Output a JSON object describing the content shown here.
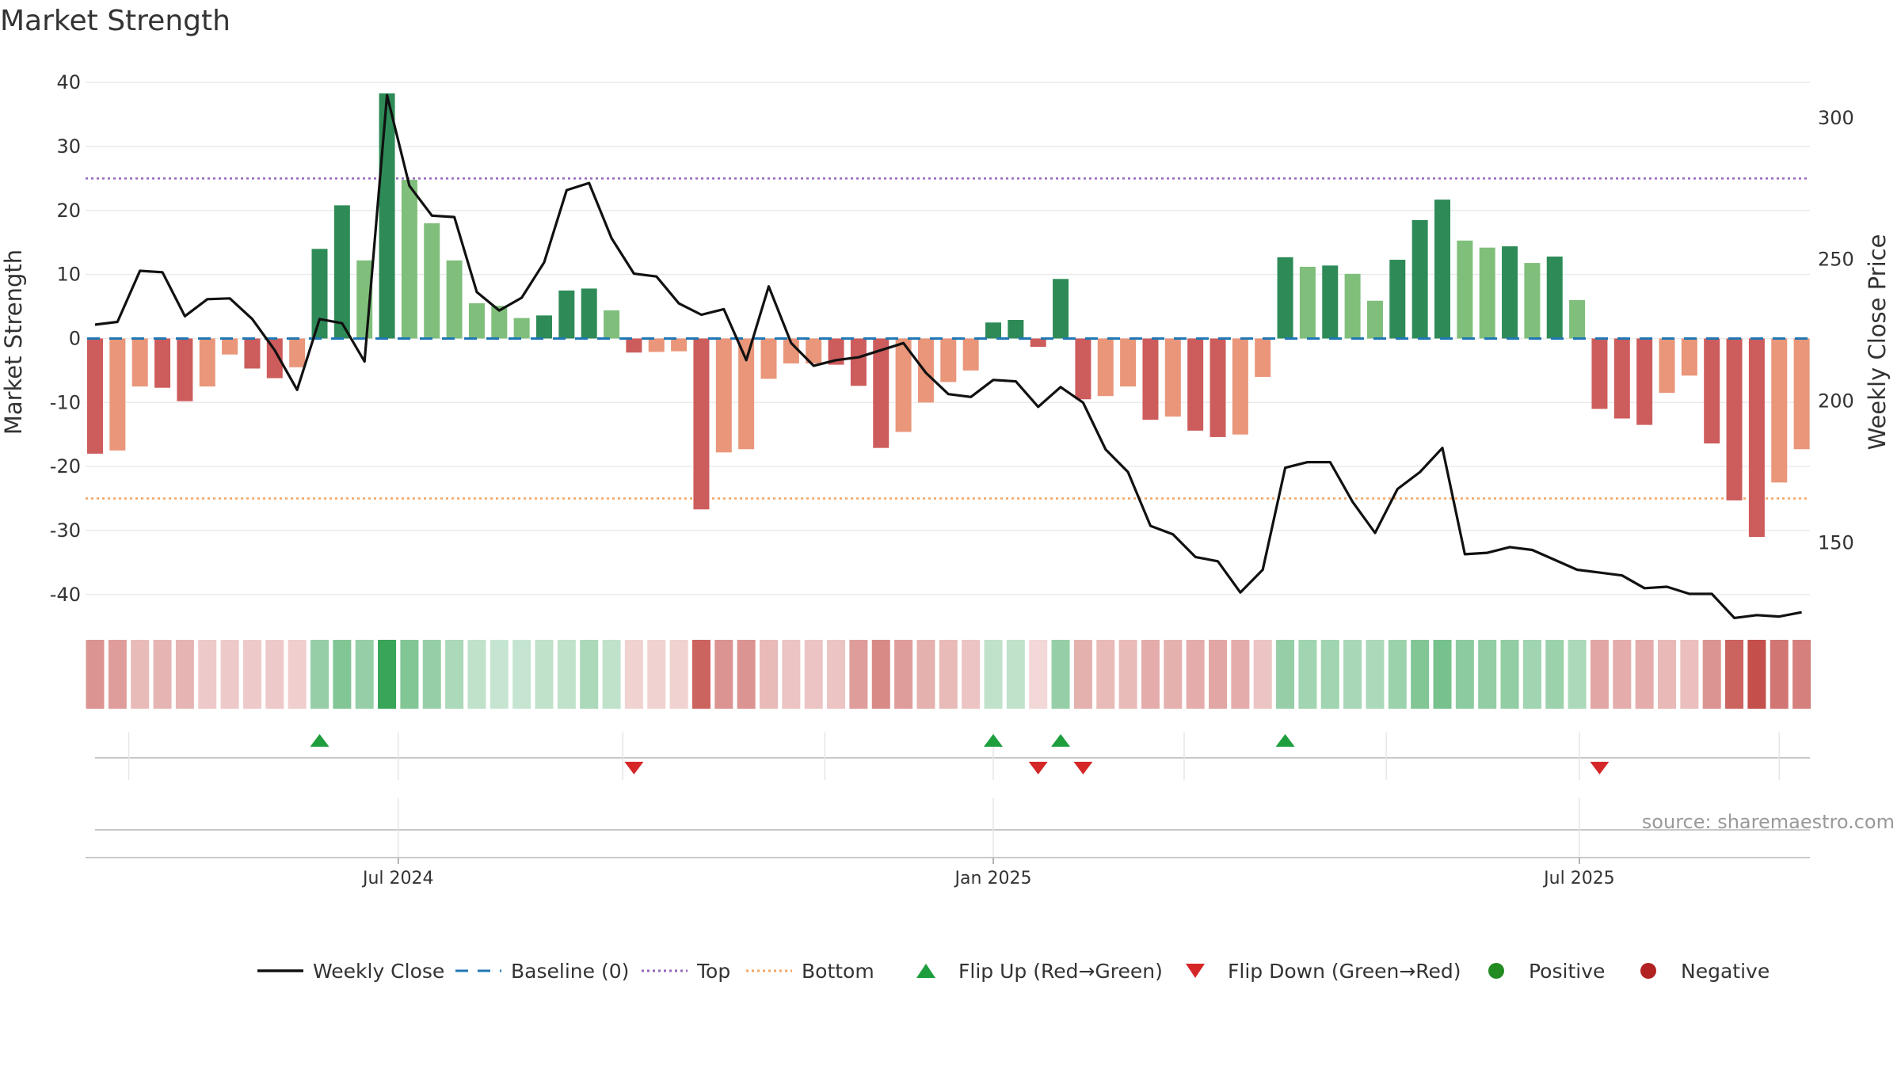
{
  "chart_data": {
    "type": "bar",
    "title": "Market Strength",
    "ylabel": "Market Strength",
    "y2label": "Weekly Close Price",
    "source": "source: sharemaestro.com",
    "ylim": [
      -43,
      42
    ],
    "y2lim": [
      125,
      317
    ],
    "yticks": [
      40,
      30,
      20,
      10,
      0,
      -10,
      -20,
      -30,
      -40
    ],
    "y2ticks": [
      300,
      250,
      200,
      150
    ],
    "xticks": [
      "Jul 2024",
      "Jan 2025",
      "Jul 2025"
    ],
    "xtick_index": [
      13.5,
      40,
      66.1
    ],
    "top_level": 25,
    "bottom_level": -25,
    "grid": true,
    "legend_position": "bottom-center",
    "colors": {
      "strong_green": "#2e8b57",
      "light_green": "#7fbf7b",
      "strong_red": "#cd5c5c",
      "light_red": "#e9967a",
      "close_line": "#111111",
      "baseline": "#1f77b4",
      "top": "#9467bd",
      "bottom": "#f4a460",
      "flip_up": "#1f9e3e",
      "flip_down": "#d62728",
      "positive": "#228b22",
      "negative": "#b22222"
    },
    "strength": [
      -18,
      -17.5,
      -7.5,
      -7.7,
      -9.8,
      -7.5,
      -2.5,
      -4.7,
      -6.2,
      -4.5,
      14,
      20.8,
      12.2,
      38.3,
      24.8,
      18,
      12.2,
      5.5,
      5.1,
      3.2,
      3.6,
      7.5,
      7.8,
      4.4,
      -2.2,
      -2.1,
      -2,
      -26.7,
      -17.8,
      -17.3,
      -6.3,
      -3.9,
      -3.9,
      -4.1,
      -7.4,
      -17.1,
      -14.6,
      -10,
      -6.8,
      -5,
      2.5,
      2.9,
      -1.3,
      9.3,
      -9.5,
      -9,
      -7.5,
      -12.7,
      -12.2,
      -14.4,
      -15.4,
      -15,
      -6,
      12.7,
      11.2,
      11.4,
      10.1,
      5.9,
      12.3,
      18.5,
      21.7,
      15.3,
      14.2,
      14.4,
      11.8,
      12.8,
      6,
      -11,
      -12.5,
      -13.5,
      -8.5,
      -5.8,
      -16.4,
      -25.3,
      -31,
      -22.5,
      -17.3
    ],
    "strength_tone": [
      "strong",
      "light",
      "light",
      "strong",
      "strong",
      "light",
      "light",
      "strong",
      "strong",
      "light",
      "strong",
      "strong",
      "light",
      "strong",
      "light",
      "light",
      "light",
      "light",
      "light",
      "light",
      "strong",
      "strong",
      "strong",
      "light",
      "strong",
      "light",
      "light",
      "strong",
      "light",
      "light",
      "light",
      "light",
      "light",
      "strong",
      "strong",
      "strong",
      "light",
      "light",
      "light",
      "light",
      "strong",
      "strong",
      "strong",
      "strong",
      "strong",
      "light",
      "light",
      "strong",
      "light",
      "strong",
      "strong",
      "light",
      "light",
      "strong",
      "light",
      "strong",
      "light",
      "light",
      "strong",
      "strong",
      "strong",
      "light",
      "light",
      "strong",
      "light",
      "strong",
      "light",
      "strong",
      "strong",
      "strong",
      "light",
      "light",
      "strong",
      "strong",
      "strong",
      "light",
      "light"
    ],
    "close_x": [
      0,
      1,
      2,
      3,
      4,
      5,
      6,
      7,
      8,
      9,
      10,
      11,
      12,
      13,
      14,
      15,
      16,
      17,
      18,
      19,
      20,
      21,
      22,
      23,
      24,
      25,
      26,
      27,
      28,
      29,
      30,
      31,
      32,
      33,
      34,
      35,
      36,
      37,
      38,
      39,
      40,
      41,
      42,
      43,
      44,
      45,
      46,
      47,
      48,
      49,
      50,
      51,
      52,
      53,
      54,
      55,
      56,
      57,
      58,
      59,
      60,
      61,
      62,
      63,
      64,
      65,
      66,
      67,
      68,
      69,
      70,
      71,
      72,
      73,
      74,
      75,
      76
    ],
    "close": [
      227,
      228,
      246,
      245.5,
      230,
      236,
      236.3,
      229,
      218,
      204,
      229,
      227.5,
      214,
      308,
      276,
      265.5,
      265,
      238.5,
      232,
      236.5,
      249,
      274.5,
      277,
      257.5,
      245,
      244,
      234.5,
      230.5,
      232.5,
      214.5,
      240.5,
      220.5,
      212.5,
      214.5,
      215.5,
      218,
      220.5,
      210,
      202.5,
      201.5,
      207.5,
      207,
      198,
      205,
      199.5,
      183,
      175,
      156,
      153,
      145,
      143.5,
      132.5,
      140.5,
      176.5,
      178.5,
      178.5,
      164.5,
      153.5,
      169,
      175,
      183.5,
      146,
      146.5,
      148.5,
      147.5,
      144,
      140.5,
      139.5,
      138.5,
      134,
      134.5,
      132,
      132,
      123.5,
      124.5,
      124,
      125.5
    ],
    "tile_shade": [
      0.55,
      0.5,
      0.35,
      0.38,
      0.38,
      0.27,
      0.27,
      0.27,
      0.27,
      0.25,
      0.5,
      0.6,
      0.5,
      0.95,
      0.6,
      0.5,
      0.4,
      0.3,
      0.27,
      0.27,
      0.3,
      0.3,
      0.4,
      0.3,
      0.23,
      0.23,
      0.23,
      0.8,
      0.55,
      0.55,
      0.35,
      0.3,
      0.3,
      0.3,
      0.5,
      0.6,
      0.5,
      0.4,
      0.35,
      0.3,
      0.3,
      0.3,
      0.2,
      0.5,
      0.4,
      0.35,
      0.35,
      0.42,
      0.4,
      0.42,
      0.45,
      0.42,
      0.3,
      0.5,
      0.45,
      0.45,
      0.42,
      0.4,
      0.48,
      0.6,
      0.65,
      0.55,
      0.52,
      0.52,
      0.45,
      0.48,
      0.4,
      0.45,
      0.42,
      0.42,
      0.36,
      0.33,
      0.55,
      0.8,
      0.9,
      0.7,
      0.65
    ],
    "flip_up_index": [
      10,
      40,
      43,
      53
    ],
    "flip_down_index": [
      24,
      42,
      44,
      67
    ],
    "legend": [
      {
        "label": "Weekly Close",
        "kind": "line"
      },
      {
        "label": "Baseline (0)",
        "kind": "dash"
      },
      {
        "label": "Top",
        "kind": "dot-top"
      },
      {
        "label": "Bottom",
        "kind": "dot-bottom"
      },
      {
        "label": "Flip Up (Red→Green)",
        "kind": "tri-up"
      },
      {
        "label": "Flip Down (Green→Red)",
        "kind": "tri-down"
      },
      {
        "label": "Positive",
        "kind": "circle-pos"
      },
      {
        "label": "Negative",
        "kind": "circle-neg"
      }
    ]
  }
}
